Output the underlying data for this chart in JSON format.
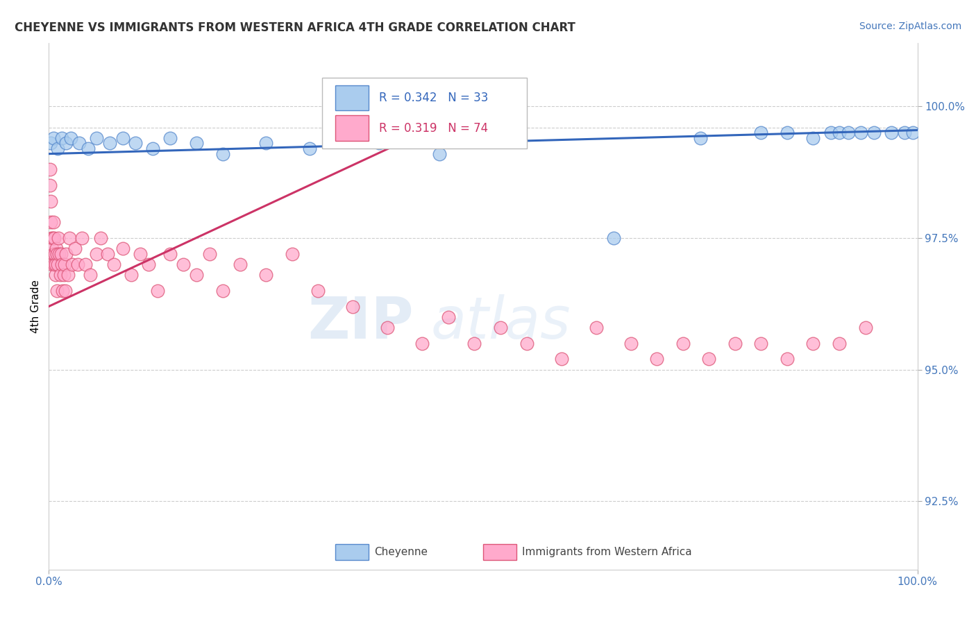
{
  "title": "CHEYENNE VS IMMIGRANTS FROM WESTERN AFRICA 4TH GRADE CORRELATION CHART",
  "source": "Source: ZipAtlas.com",
  "ylabel": "4th Grade",
  "xlim": [
    0,
    100
  ],
  "ylim": [
    91.2,
    101.2
  ],
  "yticks": [
    92.5,
    95.0,
    97.5,
    100.0
  ],
  "ytick_labels": [
    "92.5%",
    "95.0%",
    "97.5%",
    "100.0%"
  ],
  "top_dashed_y": 99.6,
  "blue_R": 0.342,
  "blue_N": 33,
  "pink_R": 0.319,
  "pink_N": 74,
  "blue_color": "#AACCEE",
  "pink_color": "#FFAACC",
  "blue_edge_color": "#5588CC",
  "pink_edge_color": "#DD5577",
  "blue_line_color": "#3366BB",
  "pink_line_color": "#CC3366",
  "tick_color": "#4477BB",
  "watermark_color": "#DDEEFF",
  "legend_labels": [
    "Cheyenne",
    "Immigrants from Western Africa"
  ],
  "blue_x": [
    0.2,
    0.5,
    1.0,
    1.5,
    2.0,
    2.5,
    3.5,
    4.5,
    5.5,
    7.0,
    8.5,
    10.0,
    12.0,
    14.0,
    17.0,
    20.0,
    25.0,
    30.0,
    38.0,
    45.0,
    65.0,
    75.0,
    82.0,
    85.0,
    88.0,
    90.0,
    91.0,
    92.0,
    93.5,
    95.0,
    97.0,
    98.5,
    99.5
  ],
  "blue_y": [
    99.3,
    99.4,
    99.2,
    99.4,
    99.3,
    99.4,
    99.3,
    99.2,
    99.4,
    99.3,
    99.4,
    99.3,
    99.2,
    99.4,
    99.3,
    99.1,
    99.3,
    99.2,
    99.3,
    99.1,
    97.5,
    99.4,
    99.5,
    99.5,
    99.4,
    99.5,
    99.5,
    99.5,
    99.5,
    99.5,
    99.5,
    99.5,
    99.5
  ],
  "pink_x": [
    0.1,
    0.15,
    0.2,
    0.25,
    0.3,
    0.35,
    0.4,
    0.45,
    0.5,
    0.55,
    0.6,
    0.65,
    0.7,
    0.75,
    0.8,
    0.85,
    0.9,
    0.95,
    1.0,
    1.1,
    1.2,
    1.3,
    1.4,
    1.5,
    1.6,
    1.7,
    1.8,
    1.9,
    2.0,
    2.2,
    2.4,
    2.7,
    3.0,
    3.3,
    3.8,
    4.2,
    4.8,
    5.5,
    6.0,
    6.8,
    7.5,
    8.5,
    9.5,
    10.5,
    11.5,
    12.5,
    14.0,
    15.5,
    17.0,
    18.5,
    20.0,
    22.0,
    25.0,
    28.0,
    31.0,
    35.0,
    39.0,
    43.0,
    46.0,
    49.0,
    52.0,
    55.0,
    59.0,
    63.0,
    67.0,
    70.0,
    73.0,
    76.0,
    79.0,
    82.0,
    85.0,
    88.0,
    91.0,
    94.0
  ],
  "pink_y": [
    98.8,
    98.5,
    98.2,
    97.8,
    97.5,
    97.3,
    97.0,
    97.5,
    97.2,
    97.8,
    97.0,
    97.5,
    97.2,
    96.8,
    97.0,
    97.3,
    96.5,
    97.2,
    97.0,
    97.5,
    97.2,
    96.8,
    97.2,
    97.0,
    96.5,
    96.8,
    97.0,
    96.5,
    97.2,
    96.8,
    97.5,
    97.0,
    97.3,
    97.0,
    97.5,
    97.0,
    96.8,
    97.2,
    97.5,
    97.2,
    97.0,
    97.3,
    96.8,
    97.2,
    97.0,
    96.5,
    97.2,
    97.0,
    96.8,
    97.2,
    96.5,
    97.0,
    96.8,
    97.2,
    96.5,
    96.2,
    95.8,
    95.5,
    96.0,
    95.5,
    95.8,
    95.5,
    95.2,
    95.8,
    95.5,
    95.2,
    95.5,
    95.2,
    95.5,
    95.5,
    95.2,
    95.5,
    95.5,
    95.8
  ],
  "blue_trend_x": [
    0,
    100
  ],
  "blue_trend_y": [
    99.1,
    99.55
  ],
  "pink_trend_x": [
    0,
    43
  ],
  "pink_trend_y": [
    96.2,
    99.5
  ]
}
